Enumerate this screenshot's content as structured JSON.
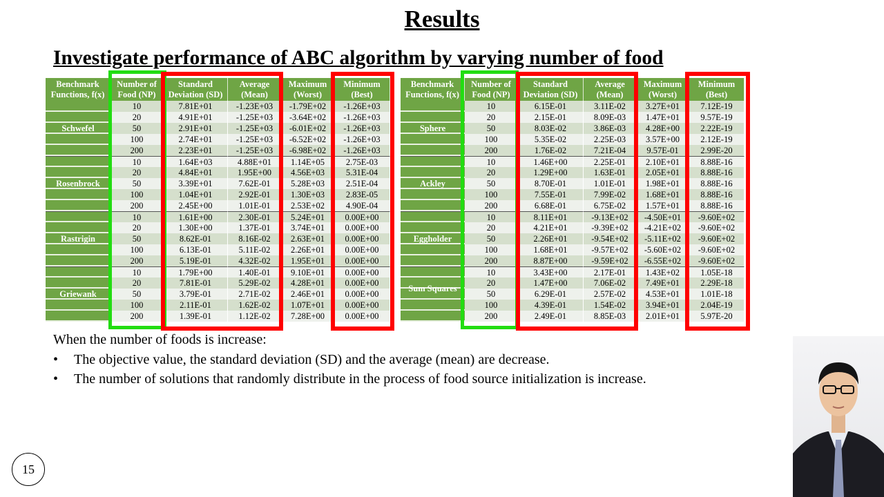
{
  "title": "Results",
  "subtitle": "Investigate performance of ABC algorithm by varying number of food",
  "headers": [
    "Benchmark Functions, f(x)",
    "Number of Food (NP)",
    "Standard Deviation (SD)",
    "Average (Mean)",
    "Maximum (Worst)",
    "Minimum (Best)"
  ],
  "highlight_colors": {
    "np_box": "#22dd11",
    "result_box": "#ff0000",
    "header_green": "#6fa545"
  },
  "tables": [
    {
      "groups": [
        {
          "name": "Schwefel",
          "rows": [
            [
              "10",
              "7.81E+01",
              "-1.23E+03",
              "-1.79E+02",
              "-1.26E+03"
            ],
            [
              "20",
              "4.91E+01",
              "-1.25E+03",
              "-3.64E+02",
              "-1.26E+03"
            ],
            [
              "50",
              "2.91E+01",
              "-1.25E+03",
              "-6.01E+02",
              "-1.26E+03"
            ],
            [
              "100",
              "2.74E+01",
              "-1.25E+03",
              "-6.52E+02",
              "-1.26E+03"
            ],
            [
              "200",
              "2.23E+01",
              "-1.25E+03",
              "-6.98E+02",
              "-1.26E+03"
            ]
          ]
        },
        {
          "name": "Rosenbrock",
          "rows": [
            [
              "10",
              "1.64E+03",
              "4.88E+01",
              "1.14E+05",
              "2.75E-03"
            ],
            [
              "20",
              "4.84E+01",
              "1.95E+00",
              "4.56E+03",
              "5.31E-04"
            ],
            [
              "50",
              "3.39E+01",
              "7.62E-01",
              "5.28E+03",
              "2.51E-04"
            ],
            [
              "100",
              "1.04E+01",
              "2.92E-01",
              "1.30E+03",
              "2.83E-05"
            ],
            [
              "200",
              "2.45E+00",
              "1.01E-01",
              "2.53E+02",
              "4.90E-04"
            ]
          ]
        },
        {
          "name": "Rastrigin",
          "rows": [
            [
              "10",
              "1.61E+00",
              "2.30E-01",
              "5.24E+01",
              "0.00E+00"
            ],
            [
              "20",
              "1.30E+00",
              "1.37E-01",
              "3.74E+01",
              "0.00E+00"
            ],
            [
              "50",
              "8.62E-01",
              "8.16E-02",
              "2.63E+01",
              "0.00E+00"
            ],
            [
              "100",
              "6.13E-01",
              "5.11E-02",
              "2.26E+01",
              "0.00E+00"
            ],
            [
              "200",
              "5.19E-01",
              "4.32E-02",
              "1.95E+01",
              "0.00E+00"
            ]
          ]
        },
        {
          "name": "Griewank",
          "rows": [
            [
              "10",
              "1.79E+00",
              "1.40E-01",
              "9.10E+01",
              "0.00E+00"
            ],
            [
              "20",
              "7.81E-01",
              "5.29E-02",
              "4.28E+01",
              "0.00E+00"
            ],
            [
              "50",
              "3.79E-01",
              "2.71E-02",
              "2.46E+01",
              "0.00E+00"
            ],
            [
              "100",
              "2.11E-01",
              "1.62E-02",
              "1.07E+01",
              "0.00E+00"
            ],
            [
              "200",
              "1.39E-01",
              "1.12E-02",
              "7.28E+00",
              "0.00E+00"
            ]
          ]
        }
      ]
    },
    {
      "groups": [
        {
          "name": "Sphere",
          "rows": [
            [
              "10",
              "6.15E-01",
              "3.11E-02",
              "3.27E+01",
              "7.12E-19"
            ],
            [
              "20",
              "2.15E-01",
              "8.09E-03",
              "1.47E+01",
              "9.57E-19"
            ],
            [
              "50",
              "8.03E-02",
              "3.86E-03",
              "4.28E+00",
              "2.22E-19"
            ],
            [
              "100",
              "5.35E-02",
              "2.25E-03",
              "3.57E+00",
              "2.12E-19"
            ],
            [
              "200",
              "1.76E-02",
              "7.21E-04",
              "9.57E-01",
              "2.99E-20"
            ]
          ]
        },
        {
          "name": "Ackley",
          "rows": [
            [
              "10",
              "1.46E+00",
              "2.25E-01",
              "2.10E+01",
              "8.88E-16"
            ],
            [
              "20",
              "1.29E+00",
              "1.63E-01",
              "2.05E+01",
              "8.88E-16"
            ],
            [
              "50",
              "8.70E-01",
              "1.01E-01",
              "1.98E+01",
              "8.88E-16"
            ],
            [
              "100",
              "7.55E-01",
              "7.99E-02",
              "1.68E+01",
              "8.88E-16"
            ],
            [
              "200",
              "6.68E-01",
              "6.75E-02",
              "1.57E+01",
              "8.88E-16"
            ]
          ]
        },
        {
          "name": "Eggholder",
          "rows": [
            [
              "10",
              "8.11E+01",
              "-9.13E+02",
              "-4.50E+01",
              "-9.60E+02"
            ],
            [
              "20",
              "4.21E+01",
              "-9.39E+02",
              "-4.21E+02",
              "-9.60E+02"
            ],
            [
              "50",
              "2.26E+01",
              "-9.54E+02",
              "-5.11E+02",
              "-9.60E+02"
            ],
            [
              "100",
              "1.68E+01",
              "-9.57E+02",
              "-5.60E+02",
              "-9.60E+02"
            ],
            [
              "200",
              "8.87E+00",
              "-9.59E+02",
              "-6.55E+02",
              "-9.60E+02"
            ]
          ]
        },
        {
          "name": "Sum Squares",
          "rows": [
            [
              "10",
              "3.43E+00",
              "2.17E-01",
              "1.43E+02",
              "1.05E-18"
            ],
            [
              "20",
              "1.47E+00",
              "7.06E-02",
              "7.49E+01",
              "2.29E-18"
            ],
            [
              "50",
              "6.29E-01",
              "2.57E-02",
              "4.53E+01",
              "1.01E-18"
            ],
            [
              "100",
              "4.39E-01",
              "1.54E-02",
              "3.94E+01",
              "2.04E-19"
            ],
            [
              "200",
              "2.49E-01",
              "8.85E-03",
              "2.01E+01",
              "5.97E-20"
            ]
          ]
        }
      ]
    }
  ],
  "body": {
    "intro": "When the number of foods is increase:",
    "bullet_glyph": "•",
    "bullets": [
      "The objective value, the standard deviation (SD) and the average (mean) are decrease.",
      "The number of solutions that randomly distribute in the process of food source initialization is increase."
    ]
  },
  "page_number": "15"
}
